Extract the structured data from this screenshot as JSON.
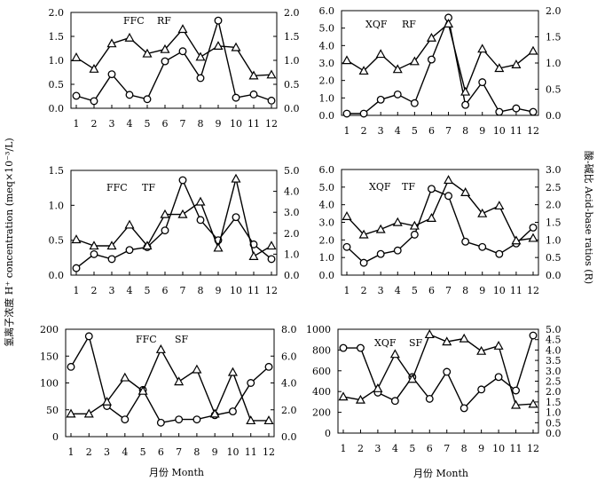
{
  "figure": {
    "left_axis_title": "氢离子浓度 H⁺ concentration (meq×10⁻³/L)",
    "right_axis_title": "酸-碱比 Acid-base ratios (R)",
    "x_axis_title": "月份 Month"
  },
  "chart_data": [
    {
      "type": "line",
      "panel": "FFC-RF",
      "labels": [
        "FFC",
        "RF"
      ],
      "x": [
        1,
        2,
        3,
        4,
        5,
        6,
        7,
        8,
        9,
        10,
        11,
        12
      ],
      "left_axis": {
        "ylim": [
          0,
          2.0
        ],
        "ticks": [
          "0.0",
          "0.5",
          "1.0",
          "1.5",
          "2.0"
        ]
      },
      "right_axis": {
        "ylim": [
          0,
          2.0
        ],
        "ticks": [
          "0.0",
          "0.5",
          "1.0",
          "1.5",
          "2.0"
        ]
      },
      "series": [
        {
          "name": "H+ concentration",
          "marker": "circle",
          "axis": "left",
          "values": [
            0.26,
            0.15,
            0.71,
            0.28,
            0.19,
            0.98,
            1.19,
            0.63,
            1.83,
            0.22,
            0.29,
            0.16
          ]
        },
        {
          "name": "Acid-base ratio",
          "marker": "triangle",
          "axis": "right",
          "values": [
            1.06,
            0.82,
            1.35,
            1.47,
            1.14,
            1.23,
            1.65,
            1.07,
            1.3,
            1.27,
            0.68,
            0.7
          ]
        }
      ]
    },
    {
      "type": "line",
      "panel": "XQF-RF",
      "labels": [
        "XQF",
        "RF"
      ],
      "x": [
        1,
        2,
        3,
        4,
        5,
        6,
        7,
        8,
        9,
        10,
        11,
        12
      ],
      "left_axis": {
        "ylim": [
          0,
          6.0
        ],
        "ticks": [
          "0.0",
          "1.0",
          "2.0",
          "3.0",
          "4.0",
          "5.0",
          "6.0"
        ]
      },
      "right_axis": {
        "ylim": [
          0,
          2.0
        ],
        "ticks": [
          "0.0",
          "0.5",
          "1.0",
          "1.5",
          "2.0"
        ]
      },
      "series": [
        {
          "name": "H+ concentration",
          "marker": "circle",
          "axis": "left",
          "values": [
            0.1,
            0.1,
            0.9,
            1.2,
            0.7,
            3.2,
            5.6,
            0.6,
            1.9,
            0.2,
            0.4,
            0.2
          ]
        },
        {
          "name": "Acid-base ratio",
          "marker": "triangle",
          "axis": "right",
          "values": [
            1.05,
            0.85,
            1.17,
            0.88,
            1.03,
            1.48,
            1.75,
            0.45,
            1.27,
            0.9,
            0.97,
            1.23
          ]
        }
      ]
    },
    {
      "type": "line",
      "panel": "FFC-TF",
      "labels": [
        "FFC",
        "TF"
      ],
      "x": [
        1,
        2,
        3,
        4,
        5,
        6,
        7,
        8,
        9,
        10,
        11,
        12
      ],
      "left_axis": {
        "ylim": [
          0,
          1.5
        ],
        "ticks": [
          "0.0",
          "0.5",
          "1.0",
          "1.5"
        ]
      },
      "right_axis": {
        "ylim": [
          0,
          5.0
        ],
        "ticks": [
          "0.0",
          "1.0",
          "2.0",
          "3.0",
          "4.0",
          "5.0"
        ]
      },
      "series": [
        {
          "name": "H+ concentration",
          "marker": "circle",
          "axis": "left",
          "values": [
            0.1,
            0.3,
            0.23,
            0.36,
            0.4,
            0.64,
            1.36,
            0.79,
            0.5,
            0.83,
            0.44,
            0.23
          ]
        },
        {
          "name": "Acid-base ratio",
          "marker": "triangle",
          "axis": "right",
          "values": [
            1.7,
            1.4,
            1.4,
            2.4,
            1.4,
            2.9,
            2.9,
            3.5,
            1.3,
            4.6,
            0.9,
            1.4
          ]
        }
      ]
    },
    {
      "type": "line",
      "panel": "XQF-TF",
      "labels": [
        "XQF",
        "TF"
      ],
      "x": [
        1,
        2,
        3,
        4,
        5,
        6,
        7,
        8,
        9,
        10,
        11,
        12
      ],
      "left_axis": {
        "ylim": [
          0,
          6.0
        ],
        "ticks": [
          "0.0",
          "1.0",
          "2.0",
          "3.0",
          "4.0",
          "5.0",
          "6.0"
        ]
      },
      "right_axis": {
        "ylim": [
          0,
          3.0
        ],
        "ticks": [
          "0.0",
          "0.5",
          "1.0",
          "1.5",
          "2.0",
          "2.5",
          "3.0"
        ]
      },
      "series": [
        {
          "name": "H+ concentration",
          "marker": "circle",
          "axis": "left",
          "values": [
            1.6,
            0.7,
            1.2,
            1.4,
            2.3,
            4.9,
            4.5,
            1.9,
            1.6,
            1.2,
            1.8,
            2.7
          ]
        },
        {
          "name": "Acid-base ratio",
          "marker": "triangle",
          "axis": "right",
          "values": [
            1.67,
            1.15,
            1.3,
            1.5,
            1.4,
            1.62,
            2.7,
            2.35,
            1.75,
            1.97,
            0.98,
            1.05
          ]
        }
      ]
    },
    {
      "type": "line",
      "panel": "FFC-SF",
      "labels": [
        "FFC",
        "SF"
      ],
      "x": [
        1,
        2,
        3,
        4,
        5,
        6,
        7,
        8,
        9,
        10,
        11,
        12
      ],
      "left_axis": {
        "ylim": [
          0,
          200
        ],
        "ticks": [
          "0",
          "50",
          "100",
          "150",
          "200"
        ]
      },
      "right_axis": {
        "ylim": [
          0,
          8.0
        ],
        "ticks": [
          "0.0",
          "2.0",
          "4.0",
          "6.0",
          "8.0"
        ]
      },
      "series": [
        {
          "name": "H+ concentration",
          "marker": "circle",
          "axis": "left",
          "values": [
            130,
            187,
            57,
            32,
            87,
            26,
            32,
            32,
            40,
            47,
            100,
            130
          ]
        },
        {
          "name": "Acid-base ratio",
          "marker": "triangle",
          "axis": "right",
          "values": [
            1.7,
            1.7,
            2.6,
            4.4,
            3.4,
            6.5,
            4.1,
            5.0,
            1.7,
            4.8,
            1.2,
            1.2
          ]
        }
      ]
    },
    {
      "type": "line",
      "panel": "XQF-SF",
      "labels": [
        "XQF",
        "SF"
      ],
      "x": [
        1,
        2,
        3,
        4,
        5,
        6,
        7,
        8,
        9,
        10,
        11,
        12
      ],
      "left_axis": {
        "ylim": [
          0,
          1000
        ],
        "ticks": [
          "0",
          "200",
          "400",
          "600",
          "800",
          "1000"
        ]
      },
      "right_axis": {
        "ylim": [
          0,
          5.0
        ],
        "ticks": [
          "0.0",
          "0.5",
          "1.0",
          "1.5",
          "2.0",
          "2.5",
          "3.0",
          "3.5",
          "4.0",
          "4.5",
          "5.0"
        ]
      },
      "series": [
        {
          "name": "H+ concentration",
          "marker": "circle",
          "axis": "left",
          "values": [
            820,
            820,
            390,
            310,
            540,
            330,
            590,
            240,
            420,
            540,
            410,
            940
          ]
        },
        {
          "name": "Acid-base ratio",
          "marker": "triangle",
          "axis": "right",
          "values": [
            1.75,
            1.6,
            2.15,
            3.8,
            2.6,
            4.75,
            4.4,
            4.55,
            3.95,
            4.2,
            1.35,
            1.4
          ]
        }
      ]
    }
  ]
}
